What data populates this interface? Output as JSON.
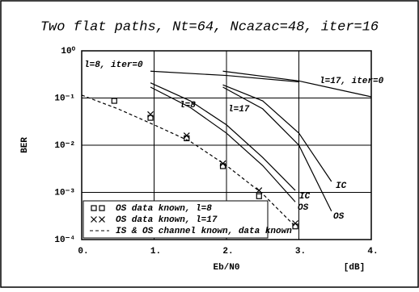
{
  "chart_data": {
    "type": "line",
    "title": "Two flat paths, Nt=64, Ncazac=48, iter=16",
    "x_label": "Eb/N0",
    "x_unit": "[dB]",
    "y_label": "BER",
    "log_y": true,
    "grid": true,
    "xlim": [
      0,
      4
    ],
    "ylim": [
      0.0001,
      1
    ],
    "xticks": [
      {
        "value": 0,
        "label": "0."
      },
      {
        "value": 1,
        "label": "1."
      },
      {
        "value": 2,
        "label": "2."
      },
      {
        "value": 3,
        "label": "3."
      },
      {
        "value": 4,
        "label": "4."
      }
    ],
    "yticks": [
      {
        "value": 0.0001,
        "label": "10⁻⁴"
      },
      {
        "value": 0.001,
        "label": "10⁻³"
      },
      {
        "value": 0.01,
        "label": "10⁻²"
      },
      {
        "value": 0.1,
        "label": "10⁻¹"
      },
      {
        "value": 1,
        "label": "10⁰"
      }
    ],
    "annotations": [
      "l=8, iter=0",
      "l=17, iter=0",
      "l=8",
      "l=17",
      "IC",
      "OS",
      "IC",
      "OS"
    ],
    "series": [
      {
        "color": "#000000",
        "style": "solid",
        "x": [
          0.95,
          2,
          3
        ],
        "values": [
          0.37,
          0.3,
          0.22
        ]
      },
      {
        "color": "#000000",
        "style": "solid",
        "x": [
          1.95,
          3,
          4
        ],
        "values": [
          0.37,
          0.23,
          0.106
        ]
      },
      {
        "color": "#000000",
        "style": "solid",
        "x": [
          0.95,
          1.5,
          2,
          2.5,
          2.95
        ],
        "values": [
          0.21,
          0.087,
          0.027,
          0.0055,
          0.0011
        ]
      },
      {
        "color": "#000000",
        "style": "solid",
        "x": [
          0.95,
          1.5,
          2,
          2.5,
          2.95
        ],
        "values": [
          0.17,
          0.063,
          0.018,
          0.0037,
          0.00063
        ]
      },
      {
        "color": "#000000",
        "style": "solid",
        "x": [
          1.95,
          2.5,
          3,
          3.45
        ],
        "values": [
          0.19,
          0.087,
          0.018,
          0.0017
        ]
      },
      {
        "color": "#000000",
        "style": "solid",
        "x": [
          1.95,
          2.5,
          3,
          3.45
        ],
        "values": [
          0.17,
          0.059,
          0.01,
          0.0004
        ]
      },
      {
        "name": "OS data known, l=8",
        "color": "#000000",
        "style": "square",
        "x": [
          0.45,
          0.95,
          1.45,
          1.95,
          2.45,
          2.95
        ],
        "values": [
          0.087,
          0.038,
          0.014,
          0.0036,
          0.00083,
          0.00019
        ]
      },
      {
        "name": "OS data known, l=17",
        "color": "#000000",
        "style": "cross",
        "x": [
          0.95,
          1.45,
          1.95,
          2.45,
          2.95
        ],
        "values": [
          0.045,
          0.016,
          0.0041,
          0.0011,
          0.00022
        ]
      },
      {
        "name": "IS & OS channel known, data known",
        "color": "#000000",
        "style": "dashed",
        "x": [
          0,
          0.5,
          1,
          1.5,
          2,
          2.5,
          2.95
        ],
        "values": [
          0.115,
          0.059,
          0.027,
          0.012,
          0.0037,
          0.00093,
          0.00019
        ]
      }
    ]
  }
}
